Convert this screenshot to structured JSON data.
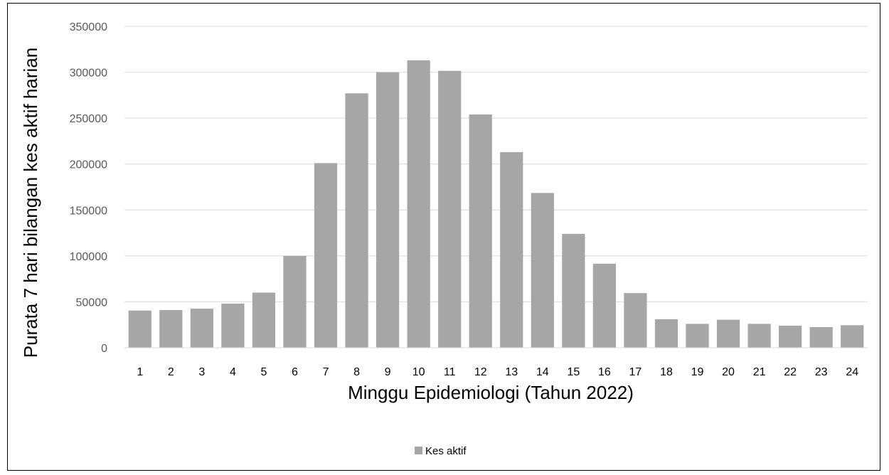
{
  "chart_data": {
    "type": "bar",
    "title": "",
    "xlabel": "Minggu Epidemiologi (Tahun 2022)",
    "ylabel": "Purata 7 hari bilangan kes aktif harian",
    "ylim": [
      0,
      350000
    ],
    "yticks": [
      0,
      50000,
      100000,
      150000,
      200000,
      250000,
      300000,
      350000
    ],
    "grid": true,
    "legend": "bottom",
    "bar_color": "#a6a6a6",
    "grid_color": "#d9d9d9",
    "categories": [
      "1",
      "2",
      "3",
      "4",
      "5",
      "6",
      "7",
      "8",
      "9",
      "10",
      "11",
      "12",
      "13",
      "14",
      "15",
      "16",
      "17",
      "18",
      "19",
      "20",
      "21",
      "22",
      "23",
      "24"
    ],
    "series": [
      {
        "name": "Kes aktif",
        "values": [
          40500,
          41000,
          42500,
          48000,
          60000,
          100000,
          201000,
          277000,
          300000,
          313000,
          301500,
          254000,
          213000,
          168500,
          124000,
          91500,
          59500,
          31000,
          26000,
          30500,
          26000,
          24000,
          22500,
          24500
        ]
      }
    ]
  }
}
